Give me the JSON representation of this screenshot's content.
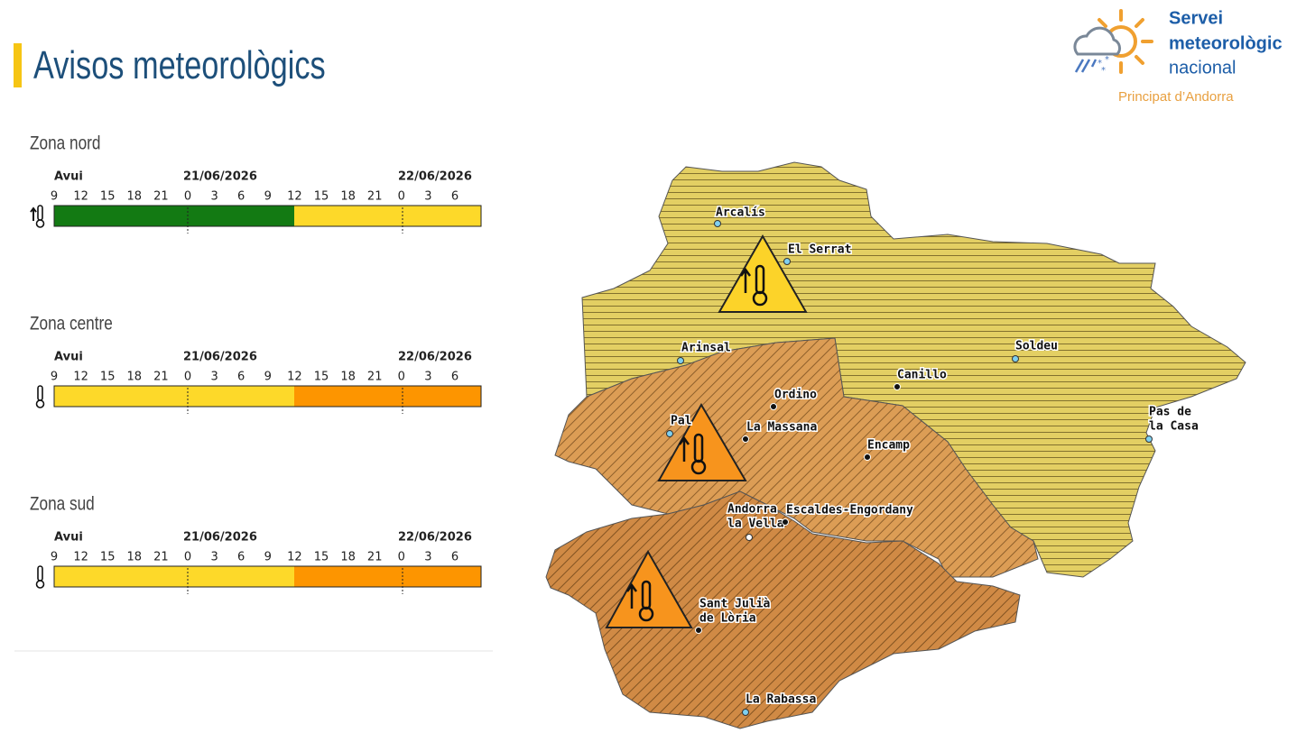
{
  "header": {
    "title": "Avisos meteorològics"
  },
  "logo": {
    "line1": "Servei",
    "line2": "meteorològic",
    "line3": "nacional",
    "subtitle": "Principat d’Andorra"
  },
  "zones": [
    {
      "name": "Zona nord",
      "dates": [
        "Avui",
        "21/06/2026",
        "22/06/2026"
      ],
      "hours": [
        "9",
        "12",
        "15",
        "18",
        "21",
        "0",
        "3",
        "6",
        "9",
        "12",
        "15",
        "18",
        "21",
        "0",
        "3",
        "6"
      ],
      "segments": [
        {
          "color": "#137a13"
        },
        {
          "color": "#fdd929"
        }
      ]
    },
    {
      "name": "Zona centre",
      "dates": [
        "Avui",
        "21/06/2026",
        "22/06/2026"
      ],
      "hours": [
        "9",
        "12",
        "15",
        "18",
        "21",
        "0",
        "3",
        "6",
        "9",
        "12",
        "15",
        "18",
        "21",
        "0",
        "3",
        "6"
      ],
      "segments": [
        {
          "color": "#fdd929"
        },
        {
          "color": "#fd9500"
        }
      ]
    },
    {
      "name": "Zona sud",
      "dates": [
        "Avui",
        "21/06/2026",
        "22/06/2026"
      ],
      "hours": [
        "9",
        "12",
        "15",
        "18",
        "21",
        "0",
        "3",
        "6",
        "9",
        "12",
        "15",
        "18",
        "21",
        "0",
        "3",
        "6"
      ],
      "segments": [
        {
          "color": "#fdd929"
        },
        {
          "color": "#fd9500"
        }
      ]
    }
  ],
  "map": {
    "places": [
      {
        "lines": [
          "Arcalís"
        ]
      },
      {
        "lines": [
          "El Serrat"
        ]
      },
      {
        "lines": [
          "Arinsal"
        ]
      },
      {
        "lines": [
          "Soldeu"
        ]
      },
      {
        "lines": [
          "Canillo"
        ]
      },
      {
        "lines": [
          "Ordino"
        ]
      },
      {
        "lines": [
          "Pal"
        ]
      },
      {
        "lines": [
          "La Massana"
        ]
      },
      {
        "lines": [
          "Encamp"
        ]
      },
      {
        "lines": [
          "Pas de",
          "la Casa"
        ]
      },
      {
        "lines": [
          "Andorra",
          "la Vella"
        ]
      },
      {
        "lines": [
          "Escaldes-Engordany"
        ]
      },
      {
        "lines": [
          "Sant Julià",
          "de Lòria"
        ]
      },
      {
        "lines": [
          "La Rabassa"
        ]
      }
    ]
  }
}
